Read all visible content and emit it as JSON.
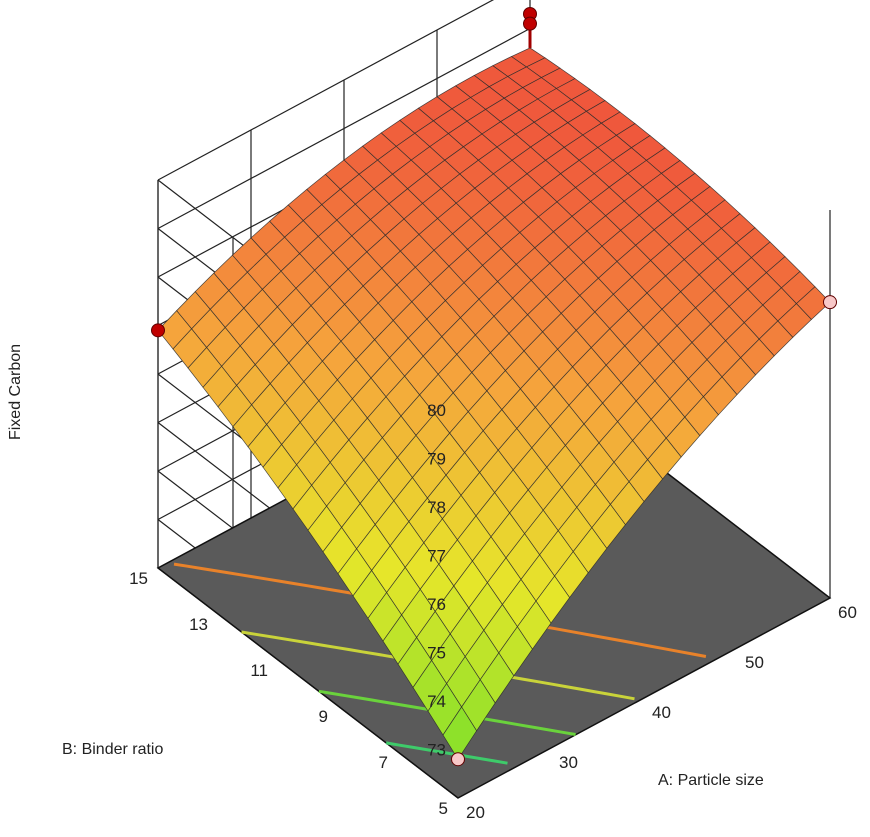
{
  "chart_data": {
    "type": "surface3d",
    "zlabel": "Fixed Carbon",
    "xlabel": "A: Particle size",
    "ylabel": "B: Binder ratio",
    "x_ticks": [
      "20",
      "30",
      "40",
      "50",
      "60"
    ],
    "y_ticks": [
      "5",
      "7",
      "9",
      "11",
      "13",
      "15"
    ],
    "z_ticks": [
      "73",
      "74",
      "75",
      "76",
      "77",
      "78",
      "79",
      "80"
    ],
    "xlim": [
      20,
      60
    ],
    "ylim": [
      5,
      15
    ],
    "zlim": [
      72,
      80
    ],
    "grid": true,
    "colormap": [
      "#7ee02a",
      "#e6e62a",
      "#f5a43c",
      "#ee4a3c"
    ],
    "floor_color": "#5a5a5a",
    "surface_corners": [
      {
        "x": 20,
        "y": 5,
        "z": 72.8
      },
      {
        "x": 60,
        "y": 5,
        "z": 78.1
      },
      {
        "x": 20,
        "y": 15,
        "z": 76.9
      },
      {
        "x": 60,
        "y": 15,
        "z": 78.6
      }
    ],
    "design_points": [
      {
        "x": 20,
        "y": 5,
        "z": 72.8,
        "position": "below-surface"
      },
      {
        "x": 60,
        "y": 5,
        "z": 78.1,
        "position": "below-surface"
      },
      {
        "x": 20,
        "y": 15,
        "z": 76.9,
        "position": "above-surface"
      },
      {
        "x": 60,
        "y": 15,
        "z": 79.3,
        "position": "above-surface"
      },
      {
        "x": 60,
        "y": 15,
        "z": 79.1,
        "position": "above-surface"
      }
    ],
    "contour_colors": [
      "#3ecb6a",
      "#6ad23c",
      "#c9d33a",
      "#e8822a"
    ]
  }
}
